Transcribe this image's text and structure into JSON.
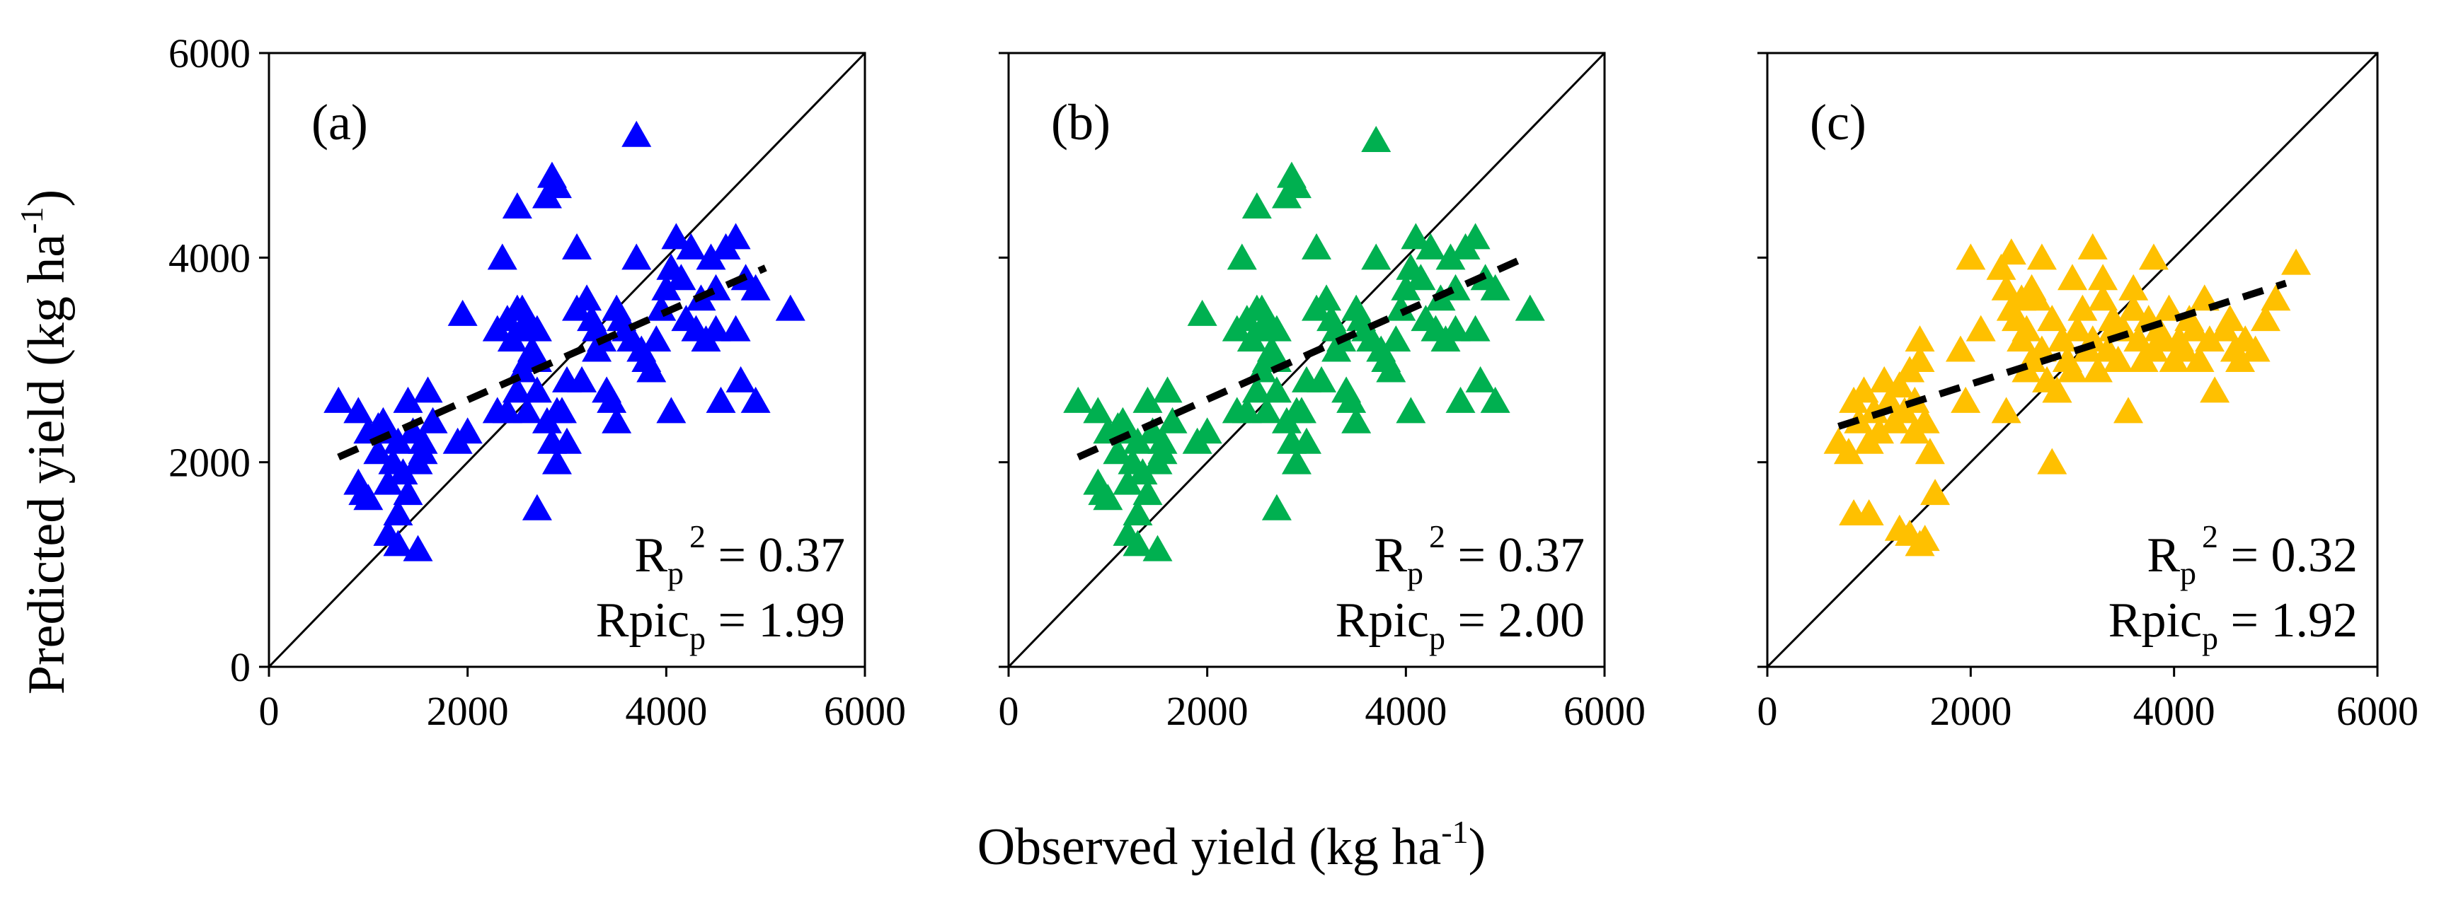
{
  "figure": {
    "ylabel": {
      "main": "Predicted yield (kg ha",
      "sup": "-1",
      "close": ")"
    },
    "xlabel": {
      "main": "Observed yield (kg ha",
      "sup": "-1",
      "close": ")"
    }
  },
  "chart_data": [
    {
      "type": "scatter",
      "panel_label": "(a)",
      "color": "#0000ff",
      "xlim": [
        0,
        6000
      ],
      "ylim": [
        0,
        6000
      ],
      "xticks": [
        "0",
        "2000",
        "4000",
        "6000"
      ],
      "yticks": [
        "0",
        "2000",
        "4000",
        "6000"
      ],
      "show_ytick_labels": true,
      "stats": [
        {
          "base": "R",
          "sub": "p",
          "sup": "2",
          "value": " = 0.37"
        },
        {
          "base": "Rpic",
          "sub": "p",
          "sup": "",
          "value": " = 1.99"
        }
      ],
      "trend": {
        "x": [
          700,
          5000
        ],
        "y": [
          2050,
          3900
        ]
      },
      "one_to_one": true,
      "x": [
        700,
        900,
        950,
        1000,
        1100,
        1150,
        1200,
        1250,
        1300,
        1350,
        1400,
        1450,
        1500,
        1550,
        1600,
        1650,
        900,
        1000,
        1100,
        1200,
        1300,
        1400,
        1500,
        1200,
        1300,
        1550,
        1950,
        2000,
        1900,
        2300,
        2350,
        2400,
        2450,
        2500,
        2550,
        2550,
        2600,
        2650,
        2700,
        2500,
        2550,
        2600,
        2700,
        2800,
        2850,
        2900,
        2950,
        3000,
        3100,
        3150,
        3200,
        3250,
        3300,
        3350,
        3400,
        3450,
        3500,
        3550,
        3600,
        3650,
        3700,
        3750,
        3800,
        3850,
        3900,
        3950,
        4000,
        4050,
        4100,
        4150,
        4200,
        4250,
        4300,
        4350,
        4400,
        4450,
        4500,
        4550,
        4600,
        4700,
        4750,
        4800,
        4900,
        5250,
        2850,
        2900,
        2800,
        2500,
        3700,
        2300,
        2600,
        2700,
        2900,
        3000,
        3100,
        3300,
        3500,
        4050,
        4500,
        4700,
        4900,
        2700,
        2400
      ],
      "y": [
        2600,
        2500,
        1700,
        2300,
        2100,
        2400,
        1800,
        2000,
        2200,
        1900,
        2600,
        2300,
        2000,
        2100,
        2700,
        2400,
        1800,
        1650,
        2350,
        1300,
        1200,
        1700,
        1150,
        2300,
        1500,
        2200,
        3450,
        2300,
        2200,
        3300,
        4000,
        3400,
        3200,
        4500,
        3500,
        3300,
        3400,
        3100,
        2700,
        2700,
        2900,
        2500,
        3000,
        2400,
        2200,
        2000,
        2500,
        2800,
        3500,
        2800,
        3600,
        3400,
        3300,
        3200,
        2700,
        2600,
        3500,
        3400,
        3300,
        3200,
        4000,
        3100,
        3000,
        2900,
        3200,
        3500,
        3700,
        3900,
        4200,
        3800,
        3400,
        4100,
        3300,
        3600,
        3200,
        4000,
        3300,
        2600,
        4100,
        4200,
        2800,
        3800,
        2600,
        3500,
        4800,
        4700,
        4600,
        3500,
        5200,
        2500,
        3000,
        3300,
        2500,
        2200,
        4100,
        3100,
        2400,
        2500,
        3700,
        3300,
        3700,
        1550,
        2500
      ]
    },
    {
      "type": "scatter",
      "panel_label": "(b)",
      "color": "#00b050",
      "xlim": [
        0,
        6000
      ],
      "ylim": [
        0,
        6000
      ],
      "xticks": [
        "0",
        "2000",
        "4000",
        "6000"
      ],
      "yticks": [
        "0",
        "2000",
        "4000",
        "6000"
      ],
      "show_ytick_labels": false,
      "stats": [
        {
          "base": "R",
          "sub": "p",
          "sup": "2",
          "value": " = 0.37"
        },
        {
          "base": "Rpic",
          "sub": "p",
          "sup": "",
          "value": " = 2.00"
        }
      ],
      "trend": {
        "x": [
          700,
          5200
        ],
        "y": [
          2050,
          4000
        ]
      },
      "one_to_one": true,
      "x": [
        700,
        900,
        950,
        1000,
        1100,
        1150,
        1200,
        1250,
        1300,
        1350,
        1400,
        1450,
        1500,
        1550,
        1600,
        1650,
        900,
        1000,
        1100,
        1200,
        1300,
        1400,
        1500,
        1200,
        1300,
        1550,
        1950,
        2000,
        1900,
        2300,
        2350,
        2400,
        2450,
        2500,
        2550,
        2550,
        2600,
        2650,
        2700,
        2500,
        2550,
        2600,
        2700,
        2800,
        2850,
        2900,
        2950,
        3000,
        3100,
        3150,
        3200,
        3250,
        3300,
        3350,
        3400,
        3450,
        3500,
        3550,
        3600,
        3650,
        3700,
        3750,
        3800,
        3850,
        3900,
        3950,
        4000,
        4050,
        4100,
        4150,
        4200,
        4250,
        4300,
        4350,
        4400,
        4450,
        4500,
        4550,
        4600,
        4700,
        4750,
        4800,
        4900,
        5250,
        2850,
        2900,
        2800,
        2500,
        3700,
        2300,
        2600,
        2700,
        2900,
        3000,
        3100,
        3300,
        3500,
        4050,
        4500,
        4700,
        4900,
        2700,
        2400
      ],
      "y": [
        2600,
        2500,
        1700,
        2300,
        2100,
        2400,
        1800,
        2000,
        2200,
        1900,
        2600,
        2300,
        2000,
        2100,
        2700,
        2400,
        1800,
        1650,
        2350,
        1300,
        1200,
        1700,
        1150,
        2300,
        1500,
        2200,
        3450,
        2300,
        2200,
        3300,
        4000,
        3400,
        3200,
        4500,
        3500,
        3300,
        3400,
        3100,
        2700,
        2700,
        2900,
        2500,
        3000,
        2400,
        2200,
        2000,
        2500,
        2800,
        3500,
        2800,
        3600,
        3400,
        3300,
        3200,
        2700,
        2600,
        3500,
        3400,
        3300,
        3200,
        4000,
        3100,
        3000,
        2900,
        3200,
        3500,
        3700,
        3900,
        4200,
        3800,
        3400,
        4100,
        3300,
        3600,
        3200,
        4000,
        3300,
        2600,
        4100,
        4200,
        2800,
        3800,
        2600,
        3500,
        4800,
        4700,
        4600,
        3500,
        5150,
        2500,
        3000,
        3300,
        2500,
        2200,
        4100,
        3100,
        2400,
        2500,
        3700,
        3300,
        3700,
        1550,
        2500
      ]
    },
    {
      "type": "scatter",
      "panel_label": "(c)",
      "color": "#ffc000",
      "xlim": [
        0,
        6000
      ],
      "ylim": [
        0,
        6000
      ],
      "xticks": [
        "0",
        "2000",
        "4000",
        "6000"
      ],
      "yticks": [
        "0",
        "2000",
        "4000",
        "6000"
      ],
      "show_ytick_labels": false,
      "stats": [
        {
          "base": "R",
          "sub": "p",
          "sup": "2",
          "value": " = 0.32"
        },
        {
          "base": "Rpic",
          "sub": "p",
          "sup": "",
          "value": " = 1.92"
        }
      ],
      "trend": {
        "x": [
          700,
          5100
        ],
        "y": [
          2350,
          3750
        ]
      },
      "one_to_one": true,
      "x": [
        700,
        800,
        850,
        900,
        950,
        1000,
        1050,
        1100,
        1150,
        1200,
        1250,
        1300,
        1350,
        1400,
        1450,
        1500,
        1550,
        1600,
        1650,
        850,
        1000,
        1300,
        1400,
        1500,
        1550,
        1450,
        1500,
        1900,
        1950,
        2000,
        2100,
        2300,
        2350,
        2400,
        2450,
        2500,
        2550,
        2600,
        2650,
        2700,
        2750,
        2800,
        2850,
        2900,
        2950,
        3000,
        3050,
        3100,
        3150,
        3200,
        3250,
        3300,
        3350,
        3400,
        3450,
        3500,
        3550,
        3600,
        3650,
        3700,
        3750,
        3800,
        3850,
        3900,
        3950,
        4000,
        4050,
        4100,
        4150,
        4200,
        4250,
        4300,
        4350,
        4400,
        4500,
        4550,
        4600,
        4650,
        4700,
        4800,
        4900,
        5000,
        5200,
        2400,
        2600,
        2700,
        2500,
        2800,
        3000,
        3200,
        3400,
        2850,
        2350,
        2550,
        3800,
        3600,
        3300
      ],
      "y": [
        2200,
        2100,
        2600,
        2400,
        2700,
        2200,
        2500,
        2300,
        2800,
        2600,
        2400,
        2750,
        2500,
        2900,
        2600,
        3200,
        2400,
        2100,
        1700,
        1500,
        1500,
        1350,
        1300,
        1200,
        1250,
        2300,
        3000,
        3100,
        2600,
        4000,
        3300,
        3900,
        3700,
        3500,
        3400,
        3200,
        3300,
        3000,
        3600,
        3100,
        2800,
        3400,
        2700,
        3200,
        3000,
        2900,
        3300,
        3500,
        3100,
        3200,
        2900,
        3600,
        3100,
        3400,
        3000,
        3300,
        2500,
        3500,
        3200,
        3000,
        3400,
        3100,
        3300,
        3200,
        3500,
        3000,
        3200,
        3100,
        3400,
        3300,
        3000,
        3600,
        3200,
        2700,
        3300,
        3400,
        3100,
        3000,
        3200,
        3100,
        3400,
        3600,
        3950,
        4050,
        3700,
        4000,
        3600,
        2000,
        3800,
        4100,
        3300,
        2700,
        2500,
        2900,
        4000,
        3700,
        3800
      ]
    }
  ]
}
